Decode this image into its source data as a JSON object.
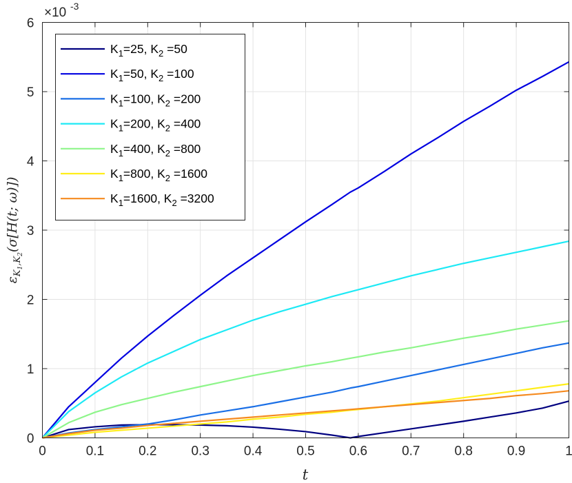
{
  "chart_data": {
    "type": "line",
    "xlabel": "t",
    "ylabel": "ε_{K1,K2}(σ[H(t;ω)])",
    "ylabel_parts": {
      "main": "ε",
      "sub": "K",
      "sub1": "1",
      "comma": ",",
      "sub2": "2",
      "rest": "(σ[H(t; ω)])"
    },
    "y_exponent_label": "×10",
    "y_exponent_power": "-3",
    "xlim": [
      0,
      1
    ],
    "ylim": [
      0,
      6
    ],
    "xticks": [
      0,
      0.1,
      0.2,
      0.3,
      0.4,
      0.5,
      0.6,
      0.7,
      0.8,
      0.9,
      1
    ],
    "xtick_labels": [
      "0",
      "0.1",
      "0.2",
      "0.3",
      "0.4",
      "0.5",
      "0.6",
      "0.7",
      "0.8",
      "0.9",
      "1"
    ],
    "yticks": [
      0,
      1,
      2,
      3,
      4,
      5,
      6
    ],
    "ytick_labels": [
      "0",
      "1",
      "2",
      "3",
      "4",
      "5",
      "6"
    ],
    "grid": true,
    "legend_position": "top-left",
    "x": [
      0,
      0.05,
      0.1,
      0.15,
      0.2,
      0.25,
      0.3,
      0.35,
      0.4,
      0.45,
      0.5,
      0.55,
      0.585,
      0.6,
      0.65,
      0.7,
      0.75,
      0.8,
      0.85,
      0.9,
      0.95,
      1.0
    ],
    "series": [
      {
        "legend": {
          "k1": "K",
          "k1sub": "1",
          "k1val": "=25, ",
          "k2": "K",
          "k2sub": "2",
          "k2val": " =50"
        },
        "color": "#000080",
        "values": [
          0,
          0.12,
          0.16,
          0.185,
          0.19,
          0.19,
          0.185,
          0.175,
          0.155,
          0.125,
          0.09,
          0.04,
          0.0,
          0.02,
          0.075,
          0.13,
          0.185,
          0.24,
          0.3,
          0.36,
          0.43,
          0.53
        ]
      },
      {
        "legend": {
          "k1": "K",
          "k1sub": "1",
          "k1val": "=50, ",
          "k2": "K",
          "k2sub": "2",
          "k2val": " =100"
        },
        "color": "#0000e0",
        "values": [
          0,
          0.45,
          0.8,
          1.15,
          1.47,
          1.77,
          2.06,
          2.34,
          2.6,
          2.86,
          3.12,
          3.37,
          3.55,
          3.61,
          3.85,
          4.1,
          4.33,
          4.57,
          4.79,
          5.02,
          5.22,
          5.43
        ]
      },
      {
        "legend": {
          "k1": "K",
          "k1sub": "1",
          "k1val": "=100, ",
          "k2": "K",
          "k2sub": "2",
          "k2val": " =200"
        },
        "color": "#1a6fe6",
        "values": [
          0,
          0.07,
          0.12,
          0.16,
          0.2,
          0.26,
          0.33,
          0.39,
          0.45,
          0.52,
          0.59,
          0.66,
          0.72,
          0.74,
          0.82,
          0.9,
          0.98,
          1.06,
          1.14,
          1.22,
          1.3,
          1.37
        ]
      },
      {
        "legend": {
          "k1": "K",
          "k1sub": "1",
          "k1val": "=200, ",
          "k2": "K",
          "k2sub": "2",
          "k2val": " =400"
        },
        "color": "#1de9f5",
        "values": [
          0,
          0.38,
          0.65,
          0.88,
          1.08,
          1.25,
          1.42,
          1.56,
          1.7,
          1.82,
          1.93,
          2.04,
          2.11,
          2.14,
          2.24,
          2.34,
          2.43,
          2.52,
          2.6,
          2.68,
          2.76,
          2.84
        ]
      },
      {
        "legend": {
          "k1": "K",
          "k1sub": "1",
          "k1val": "=400, ",
          "k2": "K",
          "k2sub": "2",
          "k2val": " =800"
        },
        "color": "#8ef58a",
        "values": [
          0,
          0.22,
          0.37,
          0.48,
          0.57,
          0.66,
          0.74,
          0.82,
          0.9,
          0.97,
          1.04,
          1.1,
          1.15,
          1.17,
          1.24,
          1.3,
          1.37,
          1.44,
          1.5,
          1.57,
          1.63,
          1.69
        ]
      },
      {
        "legend": {
          "k1": "K",
          "k1sub": "1",
          "k1val": "=800, ",
          "k2": "K",
          "k2sub": "2",
          "k2val": " =1600"
        },
        "color": "#ffee1a",
        "values": [
          0,
          0.04,
          0.08,
          0.11,
          0.14,
          0.17,
          0.2,
          0.23,
          0.27,
          0.3,
          0.34,
          0.37,
          0.4,
          0.41,
          0.45,
          0.49,
          0.53,
          0.58,
          0.63,
          0.68,
          0.73,
          0.78
        ]
      },
      {
        "legend": {
          "k1": "K",
          "k1sub": "1",
          "k1val": "=1600, ",
          "k2": "K",
          "k2sub": "2",
          "k2val": " =3200"
        },
        "color": "#f58a1f",
        "values": [
          0,
          0.06,
          0.11,
          0.14,
          0.18,
          0.21,
          0.24,
          0.27,
          0.3,
          0.33,
          0.36,
          0.39,
          0.41,
          0.42,
          0.45,
          0.48,
          0.51,
          0.54,
          0.57,
          0.61,
          0.64,
          0.68
        ]
      }
    ]
  }
}
